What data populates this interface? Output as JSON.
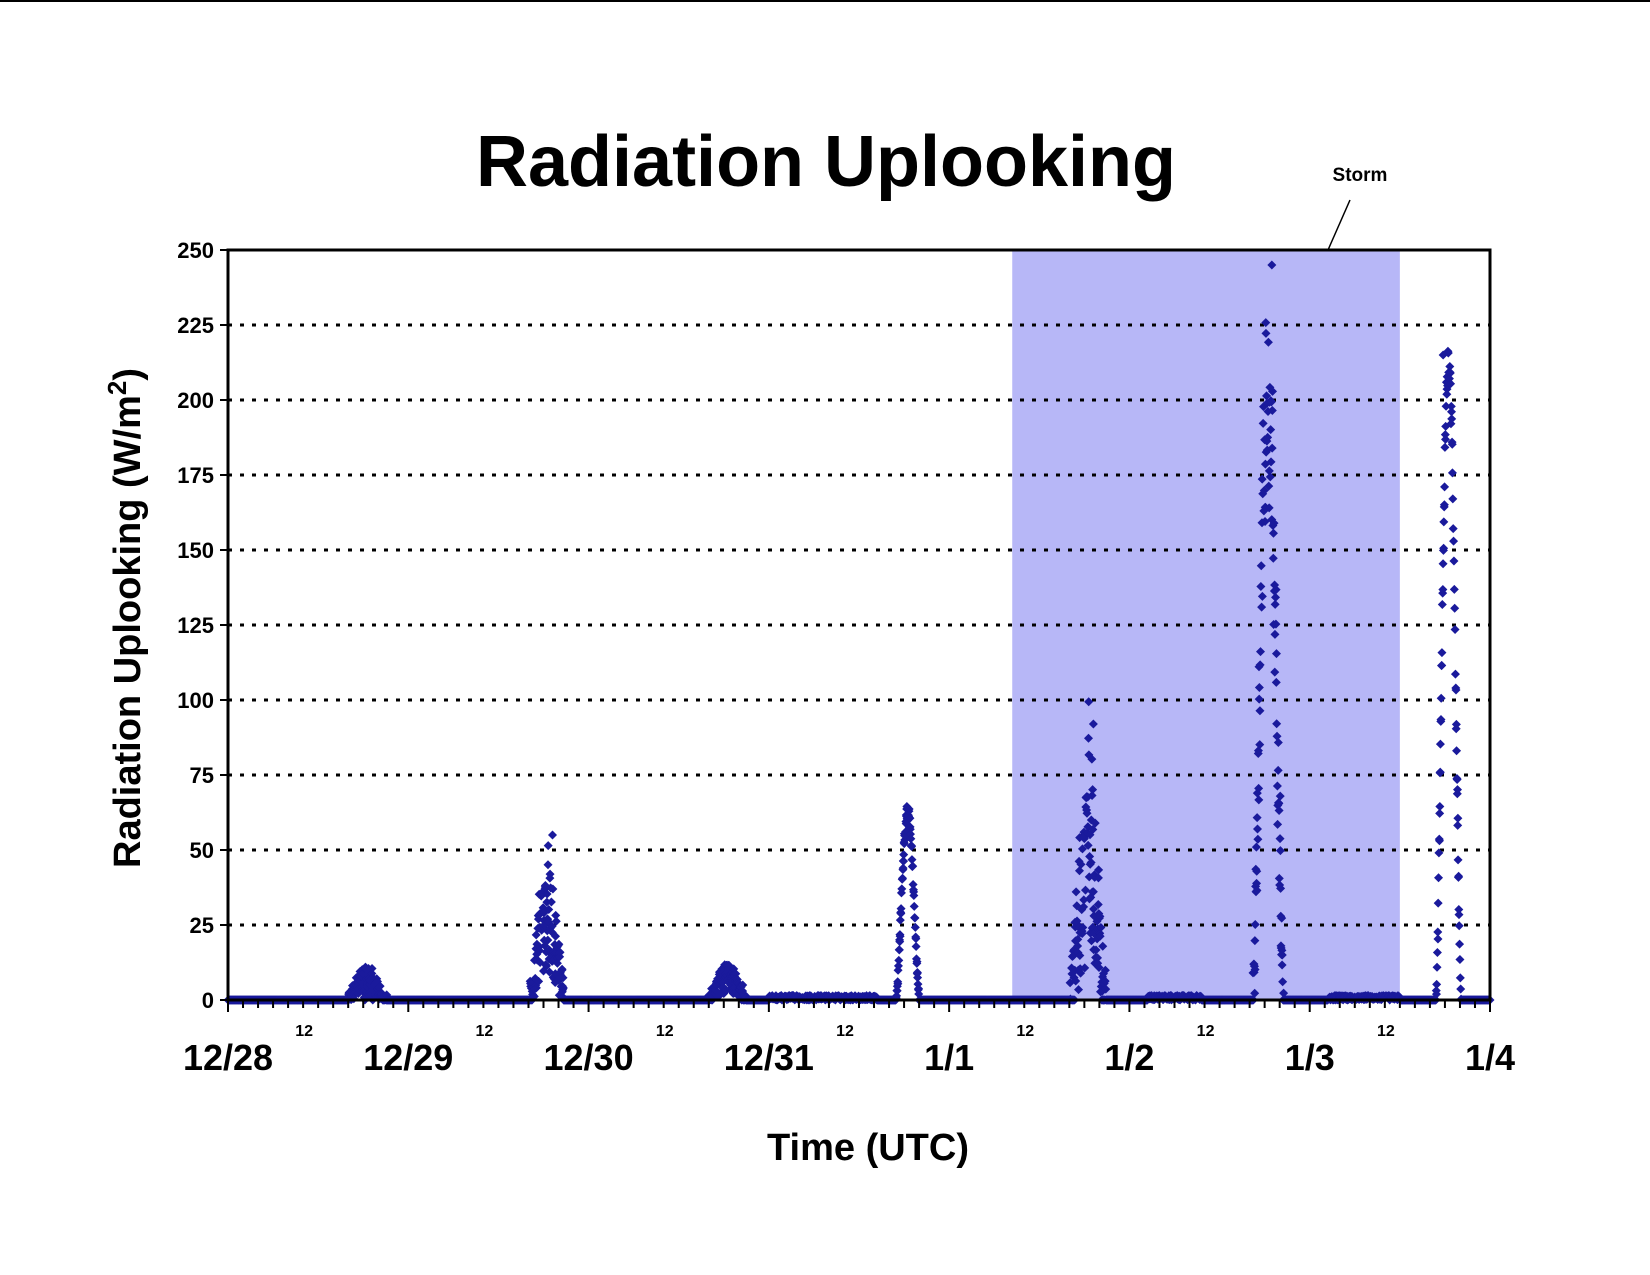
{
  "chart_data": {
    "type": "scatter",
    "title": "Radiation Uplooking",
    "xlabel": "Time (UTC)",
    "ylabel_main": "Radiation Uplooking (W/m",
    "ylabel_sup": "2",
    "ylabel_close": ")",
    "ylim": [
      0,
      250
    ],
    "yticks": [
      "0",
      "25",
      "50",
      "75",
      "100",
      "125",
      "150",
      "175",
      "200",
      "225",
      "250"
    ],
    "xlim_days": [
      0,
      7
    ],
    "day_labels": [
      "12/28",
      "12/29",
      "12/30",
      "12/31",
      "1/1",
      "1/2",
      "1/3",
      "1/4"
    ],
    "noon_label": "12",
    "grid": "horizontal dotted",
    "legend": "none",
    "marker_color": "#1a1a9c",
    "storm_shade_color": "#b7b7f7",
    "storm_annotation": "Storm",
    "storm_range_days": [
      4.35,
      6.5
    ],
    "series": [
      {
        "peaks": [
          {
            "center": 0.77,
            "width": 0.11,
            "peak": 6,
            "noise": 4
          },
          {
            "center": 1.77,
            "width": 0.1,
            "peak": 28,
            "noise": 14
          },
          {
            "center": 2.77,
            "width": 0.11,
            "peak": 7,
            "noise": 4
          },
          {
            "center": 3.77,
            "width": 0.065,
            "peak": 62,
            "noise": 2
          },
          {
            "center": 4.77,
            "width": 0.1,
            "peak": 50,
            "noise": 30
          },
          {
            "center": 5.77,
            "width": 0.085,
            "peak": 200,
            "noise": 30
          },
          {
            "center": 6.77,
            "width": 0.07,
            "peak": 212,
            "noise": 5
          }
        ],
        "max_points": [
          {
            "x": 1.8,
            "y": 55
          },
          {
            "x": 4.8,
            "y": 92
          },
          {
            "x": 5.79,
            "y": 245
          },
          {
            "x": 6.74,
            "y": 215
          }
        ]
      }
    ]
  }
}
